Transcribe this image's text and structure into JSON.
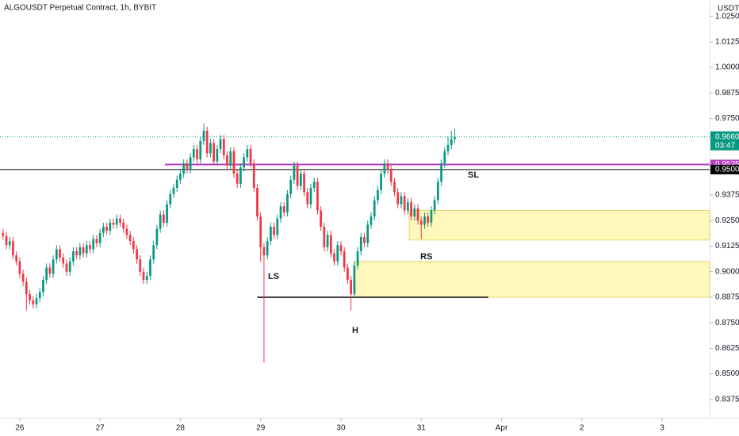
{
  "chart_data": {
    "type": "candlestick",
    "title": "ALGOUSDT Perpetual Contract, 1h, BYBIT",
    "currency": "USDT",
    "up_color": "#089981",
    "down_color": "#f23645",
    "xlim": [
      -5.9,
      206.2
    ],
    "ylim": [
      0.8285,
      1.033
    ],
    "xticks": [
      {
        "value": 0,
        "label": "26"
      },
      {
        "value": 24,
        "label": "27"
      },
      {
        "value": 48,
        "label": "28"
      },
      {
        "value": 72,
        "label": "29"
      },
      {
        "value": 96,
        "label": "30"
      },
      {
        "value": 120,
        "label": "31"
      },
      {
        "value": 144,
        "label": "Apr"
      },
      {
        "value": 168,
        "label": "2"
      },
      {
        "value": 192,
        "label": "3"
      }
    ],
    "yticks": [
      {
        "value": 1.025,
        "label": "1.0250"
      },
      {
        "value": 1.0125,
        "label": "1.0125"
      },
      {
        "value": 1.0,
        "label": "1.0000"
      },
      {
        "value": 0.9875,
        "label": "0.9875"
      },
      {
        "value": 0.975,
        "label": "0.9750"
      },
      {
        "value": 0.9375,
        "label": "0.9375"
      },
      {
        "value": 0.925,
        "label": "0.9250"
      },
      {
        "value": 0.9125,
        "label": "0.9125"
      },
      {
        "value": 0.9,
        "label": "0.9000"
      },
      {
        "value": 0.8875,
        "label": "0.8875"
      },
      {
        "value": 0.875,
        "label": "0.8750"
      },
      {
        "value": 0.8625,
        "label": "0.8625"
      },
      {
        "value": 0.85,
        "label": "0.8500"
      },
      {
        "value": 0.8375,
        "label": "0.8375"
      }
    ],
    "x": [
      -5,
      -4,
      -3,
      -2,
      -1,
      0,
      1,
      2,
      3,
      4,
      5,
      6,
      7,
      8,
      9,
      10,
      11,
      12,
      13,
      14,
      15,
      16,
      17,
      18,
      19,
      20,
      21,
      22,
      23,
      24,
      25,
      26,
      27,
      28,
      29,
      30,
      31,
      32,
      33,
      34,
      35,
      36,
      37,
      38,
      39,
      40,
      41,
      42,
      43,
      44,
      45,
      46,
      47,
      48,
      49,
      50,
      51,
      52,
      53,
      54,
      55,
      56,
      57,
      58,
      59,
      60,
      61,
      62,
      63,
      64,
      65,
      66,
      67,
      68,
      69,
      70,
      71,
      72,
      73,
      74,
      75,
      76,
      77,
      78,
      79,
      80,
      81,
      82,
      83,
      84,
      85,
      86,
      87,
      88,
      89,
      90,
      91,
      92,
      93,
      94,
      95,
      96,
      97,
      98,
      99,
      100,
      101,
      102,
      103,
      104,
      105,
      106,
      107,
      108,
      109,
      110,
      111,
      112,
      113,
      114,
      115,
      116,
      117,
      118,
      119,
      120,
      121,
      122,
      123,
      124,
      125,
      126,
      127,
      128,
      129,
      130
    ],
    "open": [
      0.919,
      0.9175,
      0.913,
      0.915,
      0.908,
      0.905,
      0.899,
      0.895,
      0.889,
      0.886,
      0.884,
      0.887,
      0.89,
      0.896,
      0.902,
      0.899,
      0.906,
      0.911,
      0.907,
      0.904,
      0.9,
      0.905,
      0.91,
      0.908,
      0.912,
      0.909,
      0.913,
      0.911,
      0.916,
      0.914,
      0.919,
      0.922,
      0.92,
      0.924,
      0.923,
      0.926,
      0.924,
      0.921,
      0.918,
      0.915,
      0.911,
      0.906,
      0.9,
      0.896,
      0.898,
      0.906,
      0.913,
      0.921,
      0.928,
      0.924,
      0.933,
      0.938,
      0.941,
      0.945,
      0.948,
      0.953,
      0.95,
      0.956,
      0.96,
      0.955,
      0.964,
      0.969,
      0.958,
      0.963,
      0.954,
      0.96,
      0.965,
      0.957,
      0.952,
      0.959,
      0.948,
      0.943,
      0.951,
      0.956,
      0.96,
      0.953,
      0.941,
      0.927,
      0.912,
      0.908,
      0.915,
      0.922,
      0.918,
      0.926,
      0.932,
      0.929,
      0.938,
      0.945,
      0.952,
      0.942,
      0.948,
      0.939,
      0.933,
      0.941,
      0.944,
      0.93,
      0.922,
      0.912,
      0.918,
      0.909,
      0.905,
      0.913,
      0.91,
      0.902,
      0.896,
      0.889,
      0.903,
      0.91,
      0.917,
      0.914,
      0.923,
      0.927,
      0.935,
      0.94,
      0.948,
      0.953,
      0.95,
      0.944,
      0.939,
      0.933,
      0.937,
      0.93,
      0.934,
      0.927,
      0.931,
      0.925,
      0.923,
      0.927,
      0.924,
      0.93,
      0.935,
      0.944,
      0.953,
      0.959,
      0.962,
      0.965
    ],
    "high": [
      0.921,
      0.9195,
      0.917,
      0.917,
      0.91,
      0.907,
      0.901,
      0.897,
      0.891,
      0.888,
      0.889,
      0.892,
      0.898,
      0.904,
      0.904,
      0.908,
      0.913,
      0.913,
      0.909,
      0.906,
      0.907,
      0.912,
      0.912,
      0.914,
      0.914,
      0.915,
      0.915,
      0.918,
      0.918,
      0.921,
      0.924,
      0.924,
      0.926,
      0.926,
      0.928,
      0.928,
      0.926,
      0.923,
      0.92,
      0.917,
      0.913,
      0.908,
      0.902,
      0.9,
      0.908,
      0.915,
      0.923,
      0.93,
      0.93,
      0.935,
      0.94,
      0.943,
      0.947,
      0.95,
      0.955,
      0.955,
      0.958,
      0.962,
      0.962,
      0.966,
      0.9725,
      0.971,
      0.965,
      0.965,
      0.962,
      0.967,
      0.967,
      0.959,
      0.961,
      0.961,
      0.95,
      0.953,
      0.958,
      0.962,
      0.962,
      0.955,
      0.943,
      0.929,
      0.914,
      0.917,
      0.924,
      0.924,
      0.928,
      0.934,
      0.934,
      0.94,
      0.947,
      0.954,
      0.954,
      0.95,
      0.95,
      0.941,
      0.943,
      0.946,
      0.946,
      0.932,
      0.924,
      0.92,
      0.92,
      0.911,
      0.915,
      0.915,
      0.912,
      0.904,
      0.898,
      0.905,
      0.912,
      0.919,
      0.919,
      0.925,
      0.929,
      0.937,
      0.942,
      0.95,
      0.955,
      0.955,
      0.952,
      0.946,
      0.941,
      0.939,
      0.939,
      0.936,
      0.936,
      0.933,
      0.933,
      0.927,
      0.929,
      0.929,
      0.932,
      0.937,
      0.946,
      0.955,
      0.961,
      0.966,
      0.969,
      0.97
    ],
    "low": [
      0.9155,
      0.911,
      0.911,
      0.906,
      0.903,
      0.897,
      0.893,
      0.881,
      0.884,
      0.882,
      0.882,
      0.885,
      0.888,
      0.894,
      0.897,
      0.897,
      0.904,
      0.905,
      0.902,
      0.898,
      0.898,
      0.903,
      0.906,
      0.906,
      0.907,
      0.907,
      0.909,
      0.909,
      0.912,
      0.912,
      0.917,
      0.918,
      0.918,
      0.921,
      0.921,
      0.922,
      0.919,
      0.916,
      0.913,
      0.909,
      0.904,
      0.898,
      0.894,
      0.894,
      0.896,
      0.904,
      0.911,
      0.919,
      0.922,
      0.922,
      0.931,
      0.936,
      0.939,
      0.943,
      0.946,
      0.948,
      0.948,
      0.954,
      0.953,
      0.953,
      0.962,
      0.956,
      0.956,
      0.952,
      0.952,
      0.958,
      0.955,
      0.95,
      0.95,
      0.946,
      0.941,
      0.941,
      0.949,
      0.954,
      0.951,
      0.939,
      0.925,
      0.905,
      0.8555,
      0.906,
      0.913,
      0.916,
      0.916,
      0.924,
      0.927,
      0.927,
      0.936,
      0.943,
      0.94,
      0.94,
      0.937,
      0.931,
      0.931,
      0.939,
      0.928,
      0.92,
      0.91,
      0.91,
      0.907,
      0.903,
      0.903,
      0.908,
      0.9,
      0.894,
      0.881,
      0.887,
      0.901,
      0.908,
      0.912,
      0.912,
      0.921,
      0.925,
      0.933,
      0.938,
      0.946,
      0.948,
      0.942,
      0.937,
      0.931,
      0.931,
      0.928,
      0.928,
      0.925,
      0.925,
      0.923,
      0.916,
      0.921,
      0.922,
      0.922,
      0.928,
      0.933,
      0.942,
      0.951,
      0.957,
      0.96,
      0.963
    ],
    "close": [
      0.9175,
      0.913,
      0.915,
      0.908,
      0.905,
      0.899,
      0.895,
      0.889,
      0.886,
      0.884,
      0.887,
      0.89,
      0.896,
      0.902,
      0.899,
      0.906,
      0.911,
      0.907,
      0.904,
      0.9,
      0.905,
      0.91,
      0.908,
      0.912,
      0.909,
      0.913,
      0.911,
      0.916,
      0.914,
      0.919,
      0.922,
      0.92,
      0.924,
      0.923,
      0.926,
      0.924,
      0.921,
      0.918,
      0.915,
      0.911,
      0.906,
      0.9,
      0.896,
      0.898,
      0.906,
      0.913,
      0.921,
      0.928,
      0.924,
      0.933,
      0.938,
      0.941,
      0.945,
      0.948,
      0.953,
      0.95,
      0.956,
      0.96,
      0.955,
      0.964,
      0.969,
      0.958,
      0.963,
      0.954,
      0.96,
      0.965,
      0.957,
      0.952,
      0.959,
      0.948,
      0.943,
      0.951,
      0.956,
      0.96,
      0.953,
      0.941,
      0.927,
      0.912,
      0.908,
      0.915,
      0.922,
      0.918,
      0.926,
      0.932,
      0.929,
      0.938,
      0.945,
      0.952,
      0.942,
      0.948,
      0.939,
      0.933,
      0.941,
      0.944,
      0.93,
      0.922,
      0.912,
      0.918,
      0.909,
      0.905,
      0.913,
      0.91,
      0.902,
      0.896,
      0.889,
      0.903,
      0.91,
      0.917,
      0.914,
      0.923,
      0.927,
      0.935,
      0.94,
      0.948,
      0.953,
      0.95,
      0.944,
      0.939,
      0.933,
      0.937,
      0.93,
      0.934,
      0.927,
      0.931,
      0.925,
      0.923,
      0.927,
      0.924,
      0.93,
      0.935,
      0.944,
      0.953,
      0.959,
      0.962,
      0.965,
      0.966
    ],
    "zones": [
      {
        "start": 116.4,
        "low": 0.9155,
        "high": 0.93
      },
      {
        "start": 100,
        "low": 0.8875,
        "high": 0.905
      }
    ],
    "neckline": {
      "value": 0.8875,
      "start": 71,
      "end": 140
    },
    "levels": [
      {
        "value": 0.9525,
        "label": "0.9525",
        "start": 43.4,
        "color": "#b53ec1"
      },
      {
        "value": 0.95,
        "label": "0.9500",
        "start": -5.9,
        "color": "#000000"
      }
    ],
    "last_price": {
      "value": 0.966,
      "label": "0.9660",
      "countdown": "03:47"
    },
    "annotations": [
      "SL",
      "LS",
      "H",
      "RS"
    ]
  }
}
